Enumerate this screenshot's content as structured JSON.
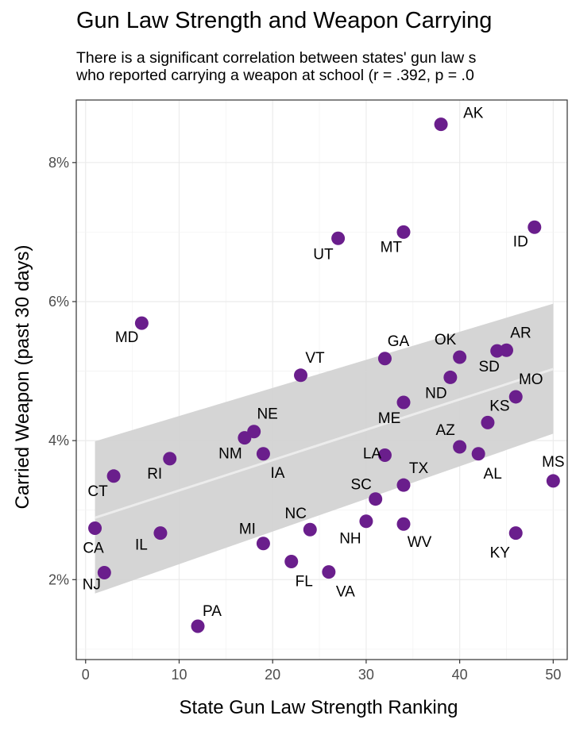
{
  "chart_data": {
    "type": "scatter",
    "title": "Gun Law Strength and Weapon Carrying",
    "subtitle_lines": [
      "There is a significant correlation between states' gun law s",
      "who reported carrying a weapon at school (r = .392, p = .0"
    ],
    "xlabel": "State Gun Law Strength Ranking",
    "ylabel": "Carried Weapon (past 30 days)",
    "xlim": [
      -1,
      51.5
    ],
    "ylim": [
      0.85,
      8.9
    ],
    "x_ticks": [
      0,
      10,
      20,
      30,
      40,
      50
    ],
    "y_ticks": [
      2,
      4,
      6,
      8
    ],
    "y_tick_format": "percent",
    "grid": true,
    "point_color": "#6a1e8c",
    "points": [
      {
        "label": "AK",
        "x": 38,
        "y": 8.55
      },
      {
        "label": "ID",
        "x": 48,
        "y": 7.07
      },
      {
        "label": "UT",
        "x": 27,
        "y": 6.91
      },
      {
        "label": "MT",
        "x": 34,
        "y": 7.0
      },
      {
        "label": "MD",
        "x": 6,
        "y": 5.69
      },
      {
        "label": "GA",
        "x": 32,
        "y": 5.18
      },
      {
        "label": "OK",
        "x": 40,
        "y": 5.2
      },
      {
        "label": "AR",
        "x": 45,
        "y": 5.3
      },
      {
        "label": "SD",
        "x": 44,
        "y": 5.29
      },
      {
        "label": "VT",
        "x": 23,
        "y": 4.94
      },
      {
        "label": "ND",
        "x": 39,
        "y": 4.91
      },
      {
        "label": "MO",
        "x": 46,
        "y": 4.63
      },
      {
        "label": "ME",
        "x": 34,
        "y": 4.55
      },
      {
        "label": "KS",
        "x": 43,
        "y": 4.26
      },
      {
        "label": "NE",
        "x": 18,
        "y": 4.13
      },
      {
        "label": "NM",
        "x": 17,
        "y": 4.04
      },
      {
        "label": "AZ",
        "x": 40,
        "y": 3.91
      },
      {
        "label": "LA",
        "x": 32,
        "y": 3.79
      },
      {
        "label": "IA",
        "x": 19,
        "y": 3.81
      },
      {
        "label": "AL",
        "x": 42,
        "y": 3.81
      },
      {
        "label": "RI",
        "x": 9,
        "y": 3.74
      },
      {
        "label": "CT",
        "x": 3,
        "y": 3.49
      },
      {
        "label": "TX",
        "x": 34,
        "y": 3.36
      },
      {
        "label": "MS",
        "x": 50,
        "y": 3.42
      },
      {
        "label": "SC",
        "x": 31,
        "y": 3.16
      },
      {
        "label": "NH",
        "x": 30,
        "y": 2.84
      },
      {
        "label": "WV",
        "x": 34,
        "y": 2.8
      },
      {
        "label": "CA",
        "x": 1,
        "y": 2.74
      },
      {
        "label": "NC",
        "x": 24,
        "y": 2.72
      },
      {
        "label": "IL",
        "x": 8,
        "y": 2.67
      },
      {
        "label": "KY",
        "x": 46,
        "y": 2.67
      },
      {
        "label": "MI",
        "x": 19,
        "y": 2.52
      },
      {
        "label": "FL",
        "x": 22,
        "y": 2.26
      },
      {
        "label": "VA",
        "x": 26,
        "y": 2.11
      },
      {
        "label": "NJ",
        "x": 2,
        "y": 2.1
      },
      {
        "label": "PA",
        "x": 12,
        "y": 1.33
      }
    ],
    "trend_line": {
      "x": [
        1,
        50
      ],
      "y": [
        2.89,
        5.03
      ],
      "color": "#ececec"
    },
    "confidence_band": {
      "x": [
        1,
        50
      ],
      "upper": [
        3.99,
        5.97
      ],
      "lower": [
        1.8,
        4.1
      ],
      "color": "#d3d3d3"
    }
  }
}
